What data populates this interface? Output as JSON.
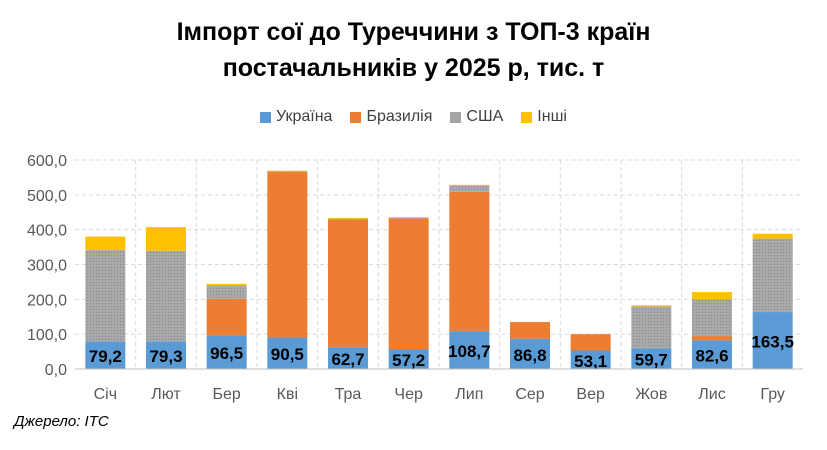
{
  "chart_data": {
    "type": "bar",
    "stacked": true,
    "title_lines": [
      "Імпорт сої до Туреччини з ТОП-3 країн",
      "постачальників  у 2025 р, тис. т"
    ],
    "categories": [
      "Січ",
      "Лют",
      "Бер",
      "Кві",
      "Тра",
      "Чер",
      "Лип",
      "Сер",
      "Вер",
      "Жов",
      "Лис",
      "Гру"
    ],
    "ylim": [
      0,
      600
    ],
    "yticks": [
      0,
      100,
      200,
      300,
      400,
      500,
      600
    ],
    "ytick_labels": [
      "0,0",
      "100,0",
      "200,0",
      "300,0",
      "400,0",
      "500,0",
      "600,0"
    ],
    "grid": true,
    "legend_position": "top",
    "series": [
      {
        "name": "Україна",
        "color": "#5B9BD5",
        "values": [
          79.2,
          79.3,
          96.5,
          90.5,
          62.7,
          57.2,
          108.7,
          86.8,
          53.1,
          59.7,
          82.6,
          163.5
        ],
        "data_labels": [
          "79,2",
          "79,3",
          "96,5",
          "90,5",
          "62,7",
          "57,2",
          "108,7",
          "86,8",
          "53,1",
          "59,7",
          "82,6",
          "163,5"
        ]
      },
      {
        "name": "Бразилія",
        "color": "#ED7D31",
        "values": [
          0,
          0,
          105,
          475,
          367,
          375,
          400,
          48,
          47,
          0,
          12,
          0
        ]
      },
      {
        "name": "США",
        "color": "#A5A5A5",
        "values": [
          263,
          260,
          38,
          2,
          2,
          2,
          17,
          0,
          0,
          120,
          106,
          211
        ]
      },
      {
        "name": "Інші",
        "color": "#FFC000",
        "values": [
          38,
          68,
          5,
          2,
          2,
          2,
          3,
          0,
          0,
          3,
          20,
          14
        ]
      }
    ]
  },
  "source": "Джерело: ITC"
}
